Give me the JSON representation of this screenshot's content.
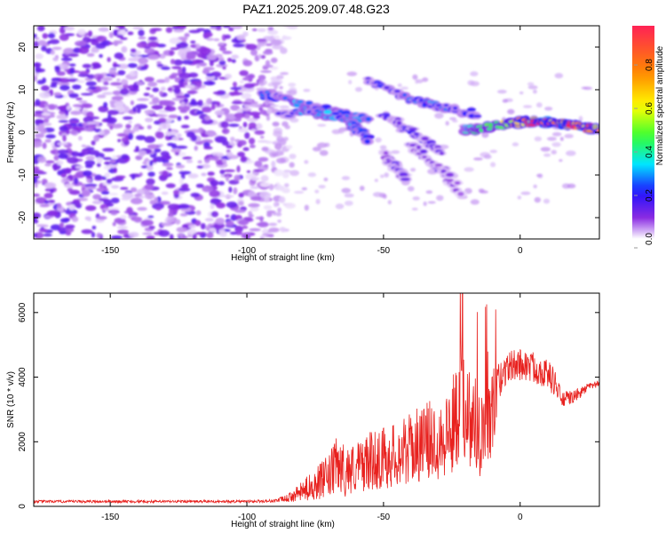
{
  "title": "PAZ1.2025.209.07.48.G23",
  "colors": {
    "snr_line": "#e8211e",
    "colormap": [
      "#ffffff",
      "#e6d3fb",
      "#8a2be2",
      "#2010ff",
      "#00e5ff",
      "#33ff33",
      "#ffff00",
      "#ff8800",
      "#ff2255"
    ]
  },
  "chart_data": [
    {
      "type": "heatmap",
      "xlabel": "Height of straight line (km)",
      "ylabel": "Frequency (Hz)",
      "xlim": [
        -178,
        29
      ],
      "ylim": [
        -25,
        25
      ],
      "xticks": [
        -150,
        -100,
        -50,
        0
      ],
      "yticks": [
        -20,
        -10,
        0,
        10,
        20
      ],
      "colorbar": {
        "label": "Normalized spectral amplitude",
        "range": [
          0,
          0.98
        ],
        "ticks": [
          "0.0",
          "0.2",
          "0.4",
          "0.6",
          "0.8"
        ]
      },
      "ridges": [
        {
          "x": [
            -95,
            -85,
            -75,
            -65,
            -55
          ],
          "y": [
            9,
            7.5,
            6,
            4.5,
            3
          ],
          "amp": [
            0.22,
            0.28,
            0.3,
            0.28,
            0.22
          ]
        },
        {
          "x": [
            -88,
            -78,
            -68,
            -58
          ],
          "y": [
            4,
            5,
            4,
            2
          ],
          "amp": [
            0.15,
            0.3,
            0.32,
            0.26
          ]
        },
        {
          "x": [
            -65,
            -60,
            -55
          ],
          "y": [
            4,
            1,
            -2
          ],
          "amp": [
            0.28,
            0.26,
            0.2
          ]
        },
        {
          "x": [
            -55,
            -45,
            -35,
            -25,
            -15
          ],
          "y": [
            12,
            9,
            7,
            5.5,
            4
          ],
          "amp": [
            0.18,
            0.22,
            0.28,
            0.26,
            0.2
          ]
        },
        {
          "x": [
            -50,
            -42,
            -35,
            -28
          ],
          "y": [
            4,
            1,
            -2,
            -5
          ],
          "amp": [
            0.15,
            0.18,
            0.15,
            0.12
          ]
        },
        {
          "x": [
            -40,
            -34,
            -28,
            -22
          ],
          "y": [
            -3,
            -6,
            -9,
            -14
          ],
          "amp": [
            0.12,
            0.14,
            0.12,
            0.1
          ]
        },
        {
          "x": [
            -50,
            -46,
            -42
          ],
          "y": [
            -5,
            -8,
            -11
          ],
          "amp": [
            0.1,
            0.14,
            0.12
          ]
        },
        {
          "x": [
            -20,
            -15,
            -10,
            -5,
            0,
            5,
            10,
            15,
            20,
            25,
            29
          ],
          "y": [
            0.5,
            1,
            1.5,
            2,
            2.5,
            2.5,
            2.2,
            2,
            1.5,
            1,
            1
          ],
          "amp": [
            0.35,
            0.45,
            0.55,
            0.65,
            0.8,
            0.9,
            0.95,
            0.9,
            0.95,
            0.85,
            0.8
          ]
        }
      ]
    },
    {
      "type": "line",
      "xlabel": "Height of straight line (km)",
      "ylabel": "SNR (10 * v/v)",
      "xlim": [
        -178,
        29
      ],
      "ylim": [
        0,
        6600
      ],
      "xticks": [
        -150,
        -100,
        -50,
        0
      ],
      "yticks": [
        0,
        2000,
        4000,
        6000
      ],
      "series": [
        {
          "x": [
            -178,
            -160,
            -140,
            -120,
            -100,
            -90,
            -85,
            -80,
            -75,
            -70,
            -67,
            -64,
            -60,
            -55,
            -50,
            -45,
            -40,
            -35,
            -30,
            -25,
            -21,
            -20,
            -15,
            -12,
            -10,
            -8,
            -5,
            0,
            5,
            10,
            13,
            15,
            20,
            25,
            29
          ],
          "y": [
            150,
            150,
            150,
            150,
            150,
            170,
            250,
            450,
            700,
            900,
            1300,
            1100,
            1200,
            1400,
            1500,
            1600,
            1800,
            2000,
            2100,
            2400,
            3500,
            3000,
            2400,
            2600,
            2800,
            3800,
            4300,
            4400,
            4300,
            4100,
            3800,
            3300,
            3400,
            3700,
            3800
          ],
          "noise": [
            40,
            40,
            40,
            40,
            40,
            50,
            120,
            300,
            500,
            700,
            900,
            800,
            800,
            900,
            1000,
            1000,
            1100,
            1200,
            1300,
            1500,
            1900,
            1700,
            1500,
            1500,
            1500,
            600,
            500,
            500,
            500,
            450,
            450,
            250,
            200,
            120,
            100
          ]
        }
      ]
    }
  ]
}
